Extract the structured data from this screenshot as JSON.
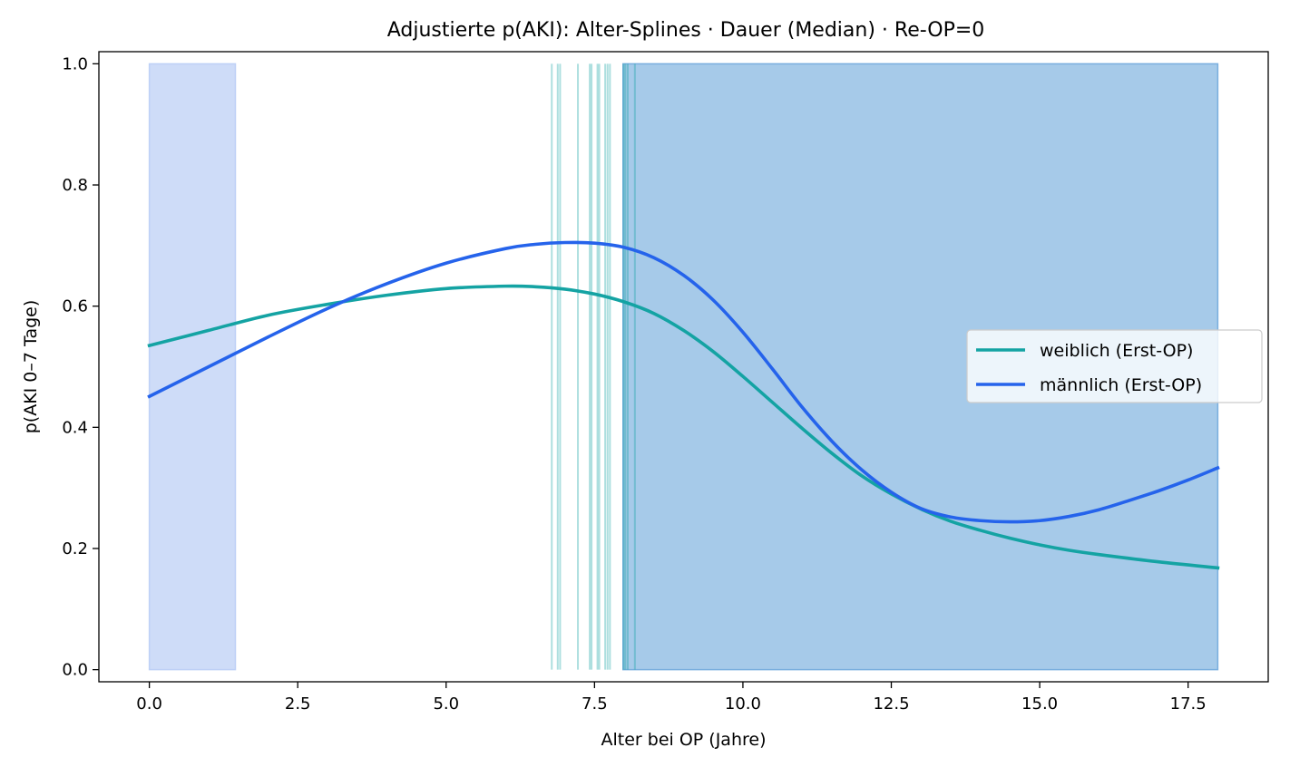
{
  "chart_data": {
    "type": "line",
    "title": "Adjustierte p(AKI): Alter-Splines · Dauer (Median) · Re-OP=0",
    "xlabel": "Alter bei OP (Jahre)",
    "ylabel": "p(AKI 0–7 Tage)",
    "xlim": [
      -0.85,
      18.85
    ],
    "ylim": [
      -0.02,
      1.02
    ],
    "xticks": [
      0.0,
      2.5,
      5.0,
      7.5,
      10.0,
      12.5,
      15.0,
      17.5
    ],
    "xtick_labels": [
      "0.0",
      "2.5",
      "5.0",
      "7.5",
      "10.0",
      "12.5",
      "15.0",
      "17.5"
    ],
    "yticks": [
      0.0,
      0.2,
      0.4,
      0.6,
      0.8,
      1.0
    ],
    "ytick_labels": [
      "0.0",
      "0.2",
      "0.4",
      "0.6",
      "0.8",
      "1.0"
    ],
    "grid": false,
    "legend_position": "center-right",
    "series": [
      {
        "name": "weiblich (Erst-OP)",
        "color": "#14a3a3",
        "x": [
          0,
          1,
          2,
          3,
          4,
          5,
          6,
          6.5,
          7,
          7.5,
          8,
          8.5,
          9,
          9.5,
          10,
          10.5,
          11,
          11.5,
          12,
          12.5,
          13,
          13.5,
          14,
          14.5,
          15,
          15.5,
          16,
          17,
          18
        ],
        "y": [
          0.535,
          0.56,
          0.585,
          0.603,
          0.618,
          0.629,
          0.633,
          0.632,
          0.628,
          0.62,
          0.607,
          0.588,
          0.56,
          0.525,
          0.484,
          0.441,
          0.398,
          0.357,
          0.32,
          0.29,
          0.265,
          0.245,
          0.23,
          0.217,
          0.206,
          0.197,
          0.19,
          0.178,
          0.168
        ]
      },
      {
        "name": "männlich (Erst-OP)",
        "color": "#2563eb",
        "x": [
          0,
          1,
          2,
          3,
          4,
          5,
          6,
          6.5,
          7,
          7.5,
          8,
          8.5,
          9,
          9.5,
          10,
          10.5,
          11,
          11.5,
          12,
          12.5,
          13,
          13.5,
          14,
          14.5,
          15,
          15.5,
          16,
          16.5,
          17,
          17.5,
          18
        ],
        "y": [
          0.451,
          0.5,
          0.549,
          0.596,
          0.637,
          0.671,
          0.695,
          0.702,
          0.705,
          0.704,
          0.697,
          0.68,
          0.651,
          0.61,
          0.557,
          0.496,
          0.433,
          0.377,
          0.33,
          0.293,
          0.266,
          0.252,
          0.246,
          0.244,
          0.246,
          0.253,
          0.264,
          0.279,
          0.295,
          0.313,
          0.333
        ]
      }
    ],
    "shaded_regions": [
      {
        "x0": 0.0,
        "x1": 1.45,
        "color": "#b9cdf5",
        "opacity": 0.7
      },
      {
        "x0": 7.98,
        "x1": 18.0,
        "color": "#6fa9dc",
        "opacity": 0.62
      }
    ],
    "rug_lines_x": [
      6.78,
      6.88,
      6.92,
      7.22,
      7.42,
      7.45,
      7.55,
      7.58,
      7.68,
      7.72,
      7.76,
      7.99,
      8.02,
      8.06,
      8.18
    ],
    "rug_color": "#14a3a3"
  }
}
